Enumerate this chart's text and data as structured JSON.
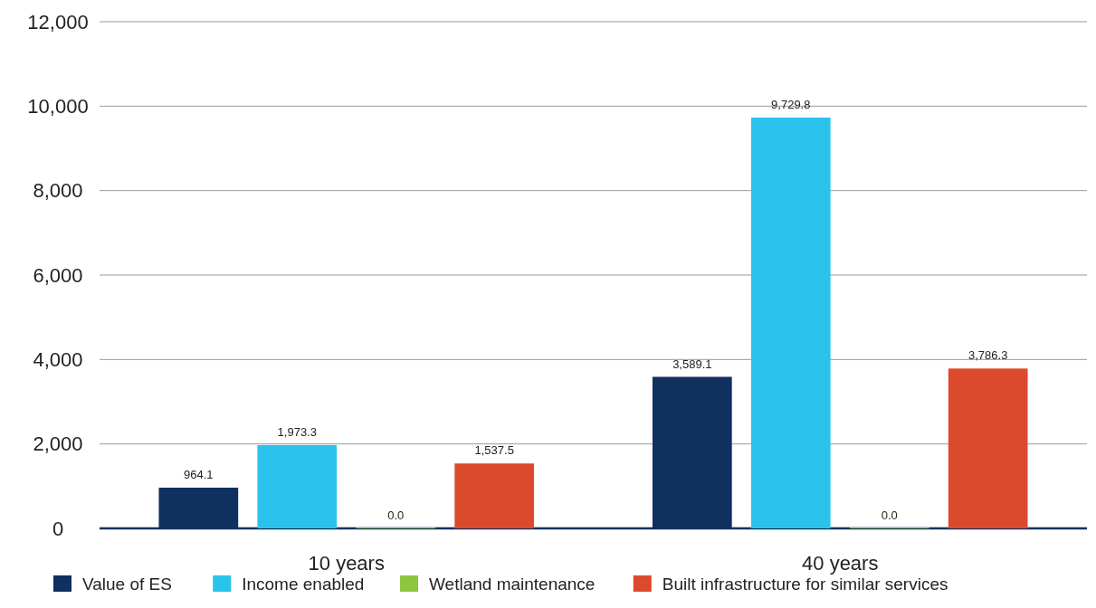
{
  "chart_data": {
    "type": "bar",
    "categories": [
      "10 years",
      "40 years"
    ],
    "series": [
      {
        "name": "Value of ES",
        "color": "#10305f",
        "values": [
          964.1,
          3589.1
        ],
        "value_labels": [
          "964.1",
          "3,589.1"
        ]
      },
      {
        "name": "Income enabled",
        "color": "#2bc3eb",
        "values": [
          1973.3,
          9729.8
        ],
        "value_labels": [
          "1,973.3",
          "9,729.8"
        ]
      },
      {
        "name": "Wetland maintenance",
        "color": "#8dc63f",
        "values": [
          0,
          0
        ],
        "value_labels": [
          "0.0",
          "0.0"
        ]
      },
      {
        "name": "Built infrastructure for similar services",
        "color": "#dc4a2d",
        "values": [
          1537.5,
          3786.3
        ],
        "value_labels": [
          "1,537.5",
          "3,786.3"
        ]
      }
    ],
    "ylim": [
      0,
      12000
    ],
    "yticks": [
      0,
      {
        "value": 2000,
        "label": "2,000"
      },
      {
        "value": 4000,
        "label": "4,000"
      },
      {
        "value": 6000,
        "label": "6,000"
      },
      {
        "value": 8000,
        "label": "8,000"
      },
      {
        "value": 10000,
        "label": "10,000"
      },
      {
        "value": 12000,
        "label": "12,000"
      }
    ],
    "grid": "y",
    "legend": "bottom"
  }
}
